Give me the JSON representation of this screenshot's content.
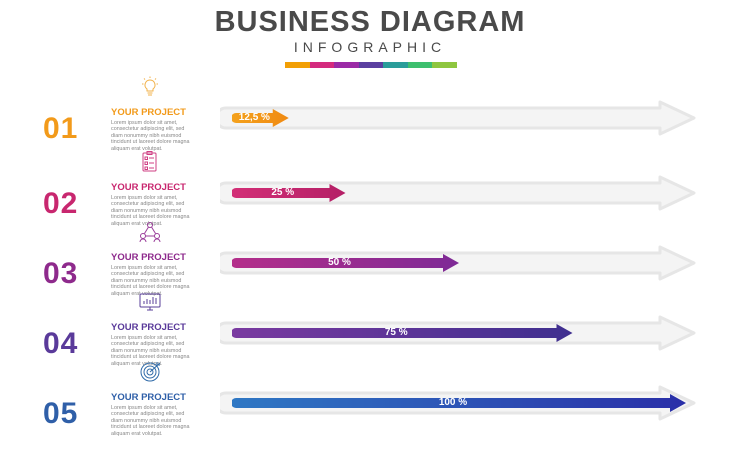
{
  "header": {
    "title": "BUSINESS DIAGRAM",
    "subtitle": "INFOGRAPHIC",
    "palette": [
      "#f29f05",
      "#d42a7e",
      "#9b2aa6",
      "#5b3fa0",
      "#2a9d9a",
      "#3dbf6e",
      "#8ec63f"
    ]
  },
  "items": [
    {
      "number": "01",
      "title": "YOUR PROJECT",
      "description": "Lorem ipsum dolor sit amet, consectetur adipiscing elit, sed diam nonummy nibh euismod tincidunt ut laoreet dolore magna aliquam erat volutpat.",
      "progress": 12.5,
      "label": "12,5 %",
      "icon": "lightbulb-icon",
      "color": "#f29a1a",
      "gradient": [
        "#f4a21d",
        "#f08a12"
      ]
    },
    {
      "number": "02",
      "title": "YOUR PROJECT",
      "description": "Lorem ipsum dolor sit amet, consectetur adipiscing elit, sed diam nonummy nibh euismod tincidunt ut laoreet dolore magna aliquam erat volutpat.",
      "progress": 25,
      "label": "25 %",
      "icon": "checklist-icon",
      "color": "#c8276f",
      "gradient": [
        "#d32f77",
        "#b41f66"
      ]
    },
    {
      "number": "03",
      "title": "YOUR PROJECT",
      "description": "Lorem ipsum dolor sit amet, consectetur adipiscing elit, sed diam nonummy nibh euismod tincidunt ut laoreet dolore magna aliquam erat volutpat.",
      "progress": 50,
      "label": "50 %",
      "icon": "team-network-icon",
      "color": "#8e2a8c",
      "gradient": [
        "#b42e8a",
        "#7e2a96"
      ]
    },
    {
      "number": "04",
      "title": "YOUR PROJECT",
      "description": "Lorem ipsum dolor sit amet, consectetur adipiscing elit, sed diam nonummy nibh euismod tincidunt ut laoreet dolore magna aliquam erat volutpat.",
      "progress": 75,
      "label": "75 %",
      "icon": "monitor-chart-icon",
      "color": "#5a3a9a",
      "gradient": [
        "#7a3aa0",
        "#3f2f8f"
      ]
    },
    {
      "number": "05",
      "title": "YOUR PROJECT",
      "description": "Lorem ipsum dolor sit amet, consectetur adipiscing elit, sed diam nonummy nibh euismod tincidunt ut laoreet dolore magna aliquam erat volutpat.",
      "progress": 100,
      "label": "100 %",
      "icon": "target-icon",
      "color": "#2f5fa8",
      "gradient": [
        "#2f78c4",
        "#2a2fa8"
      ]
    }
  ]
}
